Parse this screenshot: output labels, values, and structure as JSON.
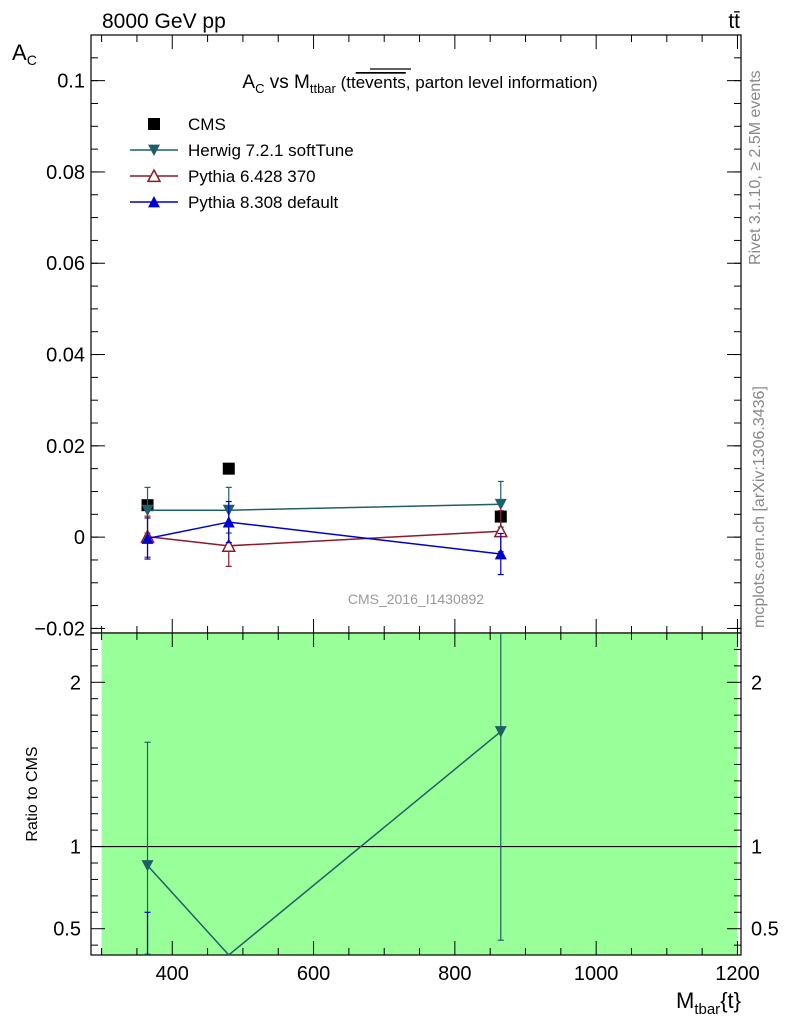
{
  "header": {
    "left": "8000 GeV pp",
    "right": "tt̄"
  },
  "side_labels": {
    "rivet": "Rivet 3.1.10, ≥ 2.5M events",
    "mcplots": "mcplots.cern.ch [arXiv:1306.3436]"
  },
  "chart_data": [
    {
      "type": "scatter",
      "title_main": "A",
      "title_sub": "C",
      "title_mid": " vs M",
      "title_sub2": "ttbar",
      "title_tail_a": " (tt",
      "title_tail_b": "events",
      "title_tail_c": ", parton level information)",
      "ylabel_main": "A",
      "ylabel_sub": "C",
      "ylim": [
        -0.021,
        0.11
      ],
      "xlim": [
        285,
        1205
      ],
      "yticks": [
        {
          "v": 0.1,
          "label": "0.1"
        },
        {
          "v": 0.08,
          "label": "0.08"
        },
        {
          "v": 0.06,
          "label": "0.06"
        },
        {
          "v": 0.04,
          "label": "0.04"
        },
        {
          "v": 0.02,
          "label": "0.02"
        },
        {
          "v": 0,
          "label": "0"
        },
        {
          "v": -0.02,
          "label": "−0.02"
        }
      ],
      "watermark": "CMS_2016_I1430892",
      "series": [
        {
          "name": "CMS",
          "color": "#000000",
          "marker": "square",
          "x": [
            365,
            480,
            865
          ],
          "y": [
            0.007,
            0.015,
            0.0045
          ],
          "err": [
            0,
            0,
            0
          ]
        },
        {
          "name": "Herwig 7.2.1 softTune",
          "color": "#1f5f66",
          "marker": "triangle-down",
          "x": [
            365,
            480,
            865
          ],
          "y": [
            0.0059,
            0.0059,
            0.0072
          ],
          "err": [
            0.005,
            0.005,
            0.005
          ]
        },
        {
          "name": "Pythia 6.428 370",
          "color": "#8b1a2b",
          "marker": "triangle-up-open",
          "x": [
            365,
            480,
            865
          ],
          "y": [
            0.0001,
            -0.0019,
            0.0013
          ],
          "err": [
            0.0045,
            0.0045,
            0.0045
          ]
        },
        {
          "name": "Pythia 8.308 default",
          "color": "#0000cc",
          "marker": "triangle-up",
          "x": [
            365,
            480,
            865
          ],
          "y": [
            -0.0003,
            0.0033,
            -0.0037
          ],
          "err": [
            0.0045,
            0.0045,
            0.0045
          ]
        }
      ]
    },
    {
      "type": "line",
      "ylabel": "Ratio to CMS",
      "xlabel_main": "M",
      "xlabel_sub": "tbar",
      "xlabel_tail": "{t}",
      "ylim": [
        0.34,
        2.3
      ],
      "xlim": [
        285,
        1205
      ],
      "band": {
        "x0": 300,
        "x1": 1200,
        "y0": 0.34,
        "y1": 2.3,
        "color": "#99ff99"
      },
      "xticks": [
        {
          "v": 400,
          "label": "400"
        },
        {
          "v": 600,
          "label": "600"
        },
        {
          "v": 800,
          "label": "800"
        },
        {
          "v": 1000,
          "label": "1000"
        },
        {
          "v": 1200,
          "label": "1200"
        }
      ],
      "yticks": [
        {
          "v": 0.5,
          "label": "0.5"
        },
        {
          "v": 1,
          "label": "1"
        },
        {
          "v": 2,
          "label": "2"
        }
      ],
      "series": [
        {
          "name": "Herwig 7.2.1 softTune",
          "color": "#1f5f66",
          "x": [
            365,
            480,
            865
          ],
          "y": [
            0.885,
            0.34,
            1.7
          ],
          "err_lo": [
            0.54,
            0,
            1.27
          ],
          "err_hi": [
            0.75,
            0,
            1.1
          ]
        },
        {
          "name": "Pythia 8.308 default",
          "color": "#0000cc",
          "x": [
            365
          ],
          "y": [
            0.34
          ],
          "err_lo": [
            0
          ],
          "err_hi": [
            0.26
          ]
        }
      ]
    }
  ]
}
